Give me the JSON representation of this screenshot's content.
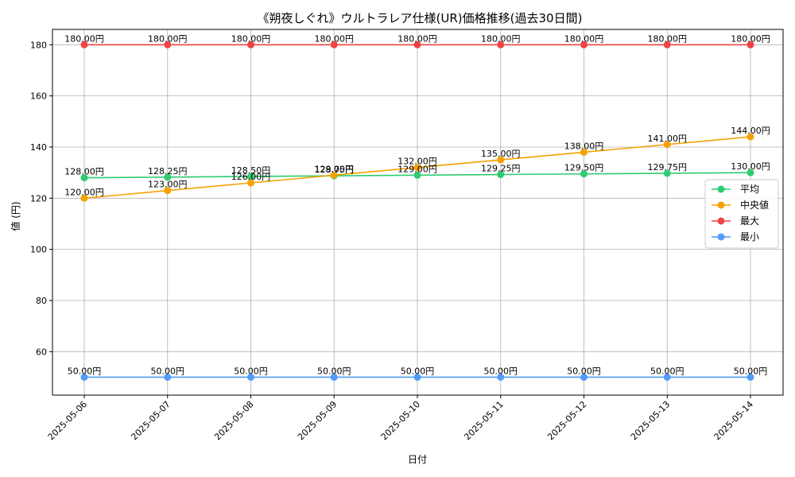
{
  "chart_data": {
    "type": "line",
    "title": "《朔夜しぐれ》ウルトラレア仕様(UR)価格推移(過去30日間)",
    "xlabel": "日付",
    "ylabel": "値 (円)",
    "ylim": [
      43,
      186
    ],
    "yticks": [
      60,
      80,
      100,
      120,
      140,
      160,
      180
    ],
    "grid": true,
    "legend_position": "right",
    "categories": [
      "2025-05-06",
      "2025-05-07",
      "2025-05-08",
      "2025-05-09",
      "2025-05-10",
      "2025-05-11",
      "2025-05-12",
      "2025-05-13",
      "2025-05-14"
    ],
    "series": [
      {
        "name": "平均",
        "color": "#2ecc71",
        "values": [
          128.0,
          128.25,
          128.5,
          128.75,
          129.0,
          129.25,
          129.5,
          129.75,
          130.0
        ],
        "labels": [
          "128.00円",
          "128.25円",
          "128.50円",
          "128.75円",
          "129.00円",
          "129.25円",
          "129.50円",
          "129.75円",
          "130.00円"
        ]
      },
      {
        "name": "中央値",
        "color": "#f5a100",
        "values": [
          120.0,
          123.0,
          126.0,
          129.0,
          132.0,
          135.0,
          138.0,
          141.0,
          144.0
        ],
        "labels": [
          "120.00円",
          "123.00円",
          "126.00円",
          "129.00円",
          "132.00円",
          "135.00円",
          "138.00円",
          "141.00円",
          "144.00円"
        ]
      },
      {
        "name": "最大",
        "color": "#ef4444",
        "values": [
          180,
          180,
          180,
          180,
          180,
          180,
          180,
          180,
          180
        ],
        "labels": [
          "180.00円",
          "180.00円",
          "180.00円",
          "180.00円",
          "180.00円",
          "180.00円",
          "180.00円",
          "180.00円",
          "180.00円"
        ]
      },
      {
        "name": "最小",
        "color": "#4f9cf9",
        "values": [
          50,
          50,
          50,
          50,
          50,
          50,
          50,
          50,
          50
        ],
        "labels": [
          "50.00円",
          "50.00円",
          "50.00円",
          "50.00円",
          "50.00円",
          "50.00円",
          "50.00円",
          "50.00円",
          "50.00円"
        ]
      }
    ]
  }
}
